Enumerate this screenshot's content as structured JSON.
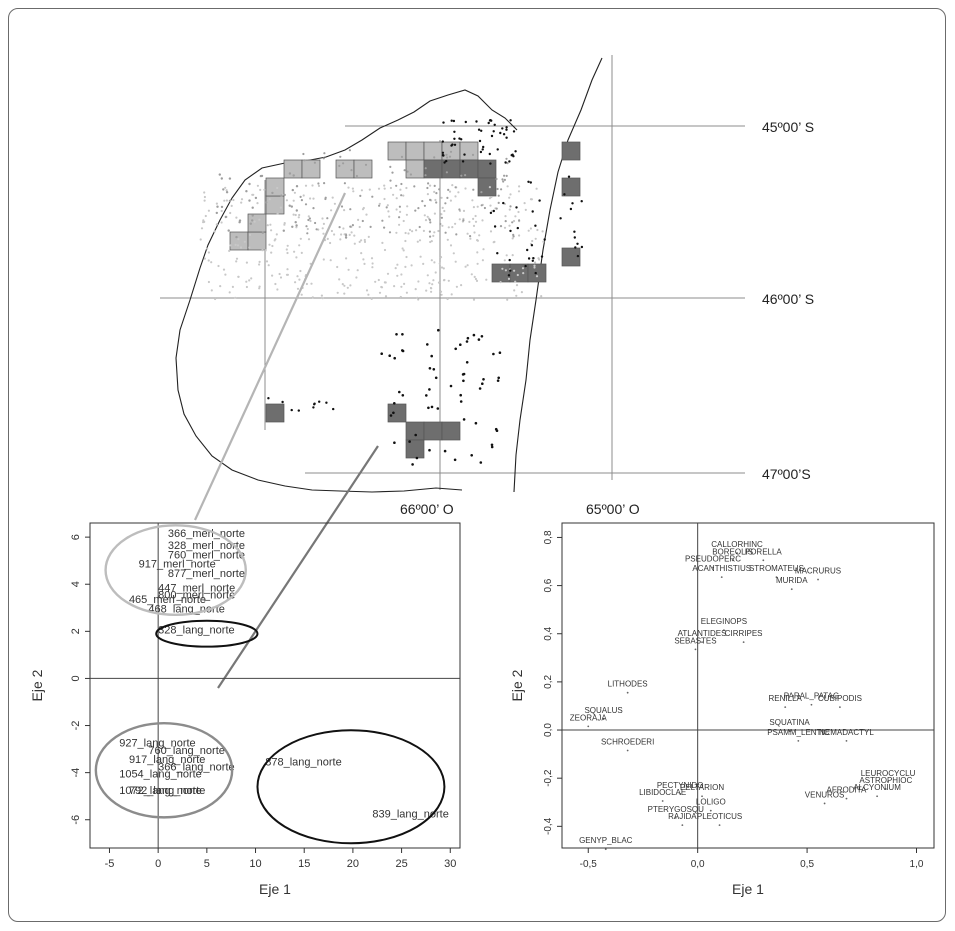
{
  "map": {
    "lat_labels": [
      "45º00’ S",
      "46º00’ S",
      "47º00’S"
    ],
    "lon_labels": [
      "66º00’ O",
      "65º00’ O"
    ],
    "colors": {
      "light": "#c8c8c8",
      "mid": "#9e9e9e",
      "dark": "#111111",
      "cell_dark": "#6e6e6e",
      "cell_hatch": "#bdbdbd"
    }
  },
  "chart_data": [
    {
      "type": "scatter",
      "title": "",
      "xlabel": "Eje 1",
      "ylabel": "Eje 2",
      "xlim": [
        -7,
        31
      ],
      "ylim": [
        -7.2,
        6.6
      ],
      "xticks": [
        "-5",
        "0",
        "5",
        "10",
        "15",
        "20",
        "25",
        "30"
      ],
      "yticks": [
        "-6",
        "-4",
        "-2",
        "0",
        "2",
        "4",
        "6"
      ],
      "points": [
        {
          "label": "366_merl_norte",
          "x": 1,
          "y": 6.0
        },
        {
          "label": "328_merl_norte",
          "x": 1,
          "y": 5.5
        },
        {
          "label": "760_merl_norte",
          "x": 1,
          "y": 5.1
        },
        {
          "label": "917_merl_norte",
          "x": -2,
          "y": 4.7
        },
        {
          "label": "877_merl_norte",
          "x": 1,
          "y": 4.3
        },
        {
          "label": "447_merl_norte",
          "x": 0,
          "y": 3.7
        },
        {
          "label": "800_merl_norte",
          "x": 0,
          "y": 3.4
        },
        {
          "label": "465_merl_norte",
          "x": -3,
          "y": 3.2
        },
        {
          "label": "468_lang_norte",
          "x": -1,
          "y": 2.8
        },
        {
          "label": "328_lang_norte",
          "x": 0,
          "y": 1.9
        },
        {
          "label": "927_lang_norte",
          "x": -4,
          "y": -2.9
        },
        {
          "label": "760_lang_norte",
          "x": -1,
          "y": -3.2
        },
        {
          "label": "917_lang_norte",
          "x": -3,
          "y": -3.6
        },
        {
          "label": "366_lang_norte",
          "x": 0,
          "y": -3.9
        },
        {
          "label": "1054_lang_norte",
          "x": -4,
          "y": -4.2
        },
        {
          "label": "1072_lang_norte",
          "x": -4,
          "y": -4.9
        },
        {
          "label": "792_lang_norte",
          "x": -3,
          "y": -4.9
        },
        {
          "label": "878_lang_norte",
          "x": 11,
          "y": -3.7
        },
        {
          "label": "839_lang_norte",
          "x": 22,
          "y": -5.9
        }
      ]
    },
    {
      "type": "scatter",
      "title": "",
      "xlabel": "Eje 1",
      "ylabel": "Eje 2",
      "xlim": [
        -0.62,
        1.08
      ],
      "ylim": [
        -0.49,
        0.86
      ],
      "xticks": [
        "-0,5",
        "0,0",
        "0,5",
        "1,0"
      ],
      "yticks": [
        "-0,4",
        "-0,2",
        "0,0",
        "0,2",
        "0,4",
        "0,6",
        "0,8"
      ],
      "points": [
        {
          "label": "CALLORHINC",
          "x": 0.18,
          "y": 0.76
        },
        {
          "label": "BOREOLIS",
          "x": 0.16,
          "y": 0.73
        },
        {
          "label": "PORELLA",
          "x": 0.3,
          "y": 0.73
        },
        {
          "label": "PSEUDOPERC",
          "x": 0.07,
          "y": 0.7
        },
        {
          "label": "ACANTHISTIUS",
          "x": 0.11,
          "y": 0.66
        },
        {
          "label": "STROMATEUS",
          "x": 0.36,
          "y": 0.66
        },
        {
          "label": "MACRURUS",
          "x": 0.55,
          "y": 0.65
        },
        {
          "label": "MURIDA",
          "x": 0.43,
          "y": 0.61
        },
        {
          "label": "ELEGINOPS",
          "x": 0.12,
          "y": 0.44
        },
        {
          "label": "ATLANTIDES",
          "x": 0.02,
          "y": 0.39
        },
        {
          "label": "CIRRIPES",
          "x": 0.21,
          "y": 0.39
        },
        {
          "label": "SEBASTES",
          "x": -0.01,
          "y": 0.36
        },
        {
          "label": "LITHODES",
          "x": -0.32,
          "y": 0.18
        },
        {
          "label": "RENILLA",
          "x": 0.4,
          "y": 0.12
        },
        {
          "label": "PARAL_PATAG",
          "x": 0.52,
          "y": 0.13
        },
        {
          "label": "CUBIPODIS",
          "x": 0.65,
          "y": 0.12
        },
        {
          "label": "SQUALUS",
          "x": -0.43,
          "y": 0.07
        },
        {
          "label": "ZEORAJA",
          "x": -0.5,
          "y": 0.04
        },
        {
          "label": "SQUATINA",
          "x": 0.42,
          "y": 0.02
        },
        {
          "label": "PSAMM_LENTIC",
          "x": 0.46,
          "y": -0.02
        },
        {
          "label": "NEMADACTYL",
          "x": 0.68,
          "y": -0.02
        },
        {
          "label": "SCHROEDERI",
          "x": -0.32,
          "y": -0.06
        },
        {
          "label": "LEUROCYCLU",
          "x": 0.87,
          "y": -0.19
        },
        {
          "label": "ASTROPHIOC",
          "x": 0.86,
          "y": -0.22
        },
        {
          "label": "ALCYONIUM",
          "x": 0.82,
          "y": -0.25
        },
        {
          "label": "AFRODITA",
          "x": 0.68,
          "y": -0.26
        },
        {
          "label": "VENUROS",
          "x": 0.58,
          "y": -0.28
        },
        {
          "label": "PECTYNIDO",
          "x": -0.08,
          "y": -0.24
        },
        {
          "label": "PELTARION",
          "x": 0.02,
          "y": -0.25
        },
        {
          "label": "LIBIDOCLAE",
          "x": -0.16,
          "y": -0.27
        },
        {
          "label": "LOLIGO",
          "x": 0.06,
          "y": -0.31
        },
        {
          "label": "PTERYGOSQU",
          "x": -0.1,
          "y": -0.34
        },
        {
          "label": "RAJIDA",
          "x": -0.07,
          "y": -0.37
        },
        {
          "label": "PLEOTICUS",
          "x": 0.1,
          "y": -0.37
        },
        {
          "label": "GENYP_BLAC",
          "x": -0.42,
          "y": -0.47
        }
      ]
    }
  ]
}
